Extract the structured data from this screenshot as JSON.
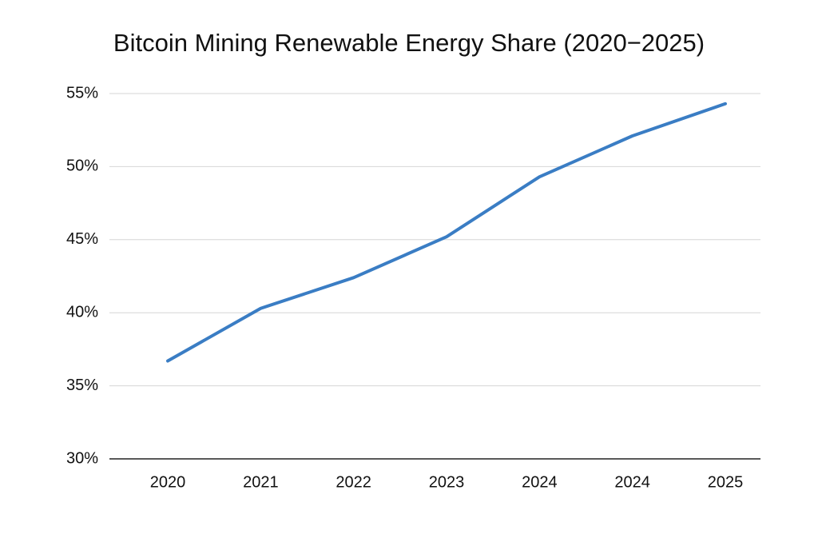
{
  "chart_data": {
    "type": "line",
    "title": "Bitcoin Mining Renewable Energy Share (2020−2025)",
    "categories": [
      "2020",
      "2021",
      "2022",
      "2023",
      "2024",
      "2024",
      "2025"
    ],
    "series": [
      {
        "name": "Renewable energy share",
        "color": "#3a7dc4",
        "values": [
          36.7,
          40.3,
          42.4,
          45.2,
          49.3,
          52.1,
          54.3
        ]
      }
    ],
    "ylim": [
      30,
      55
    ],
    "yticks": [
      {
        "value": 30,
        "label": "30%"
      },
      {
        "value": 35,
        "label": "35%"
      },
      {
        "value": 40,
        "label": "40%"
      },
      {
        "value": 45,
        "label": "45%"
      },
      {
        "value": 50,
        "label": "50%"
      },
      {
        "value": 55,
        "label": "55%"
      }
    ],
    "grid": true
  }
}
